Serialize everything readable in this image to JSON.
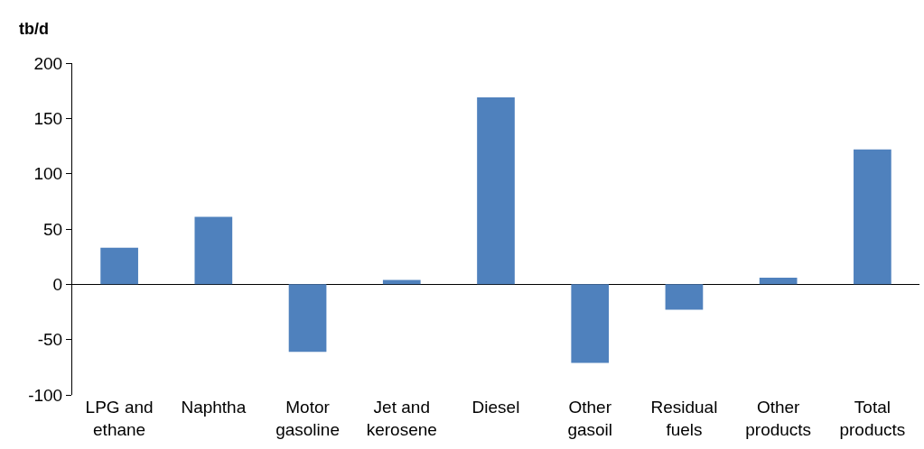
{
  "chart_data": {
    "type": "bar",
    "ylabel": "tb/d",
    "categories": [
      "LPG and\nethane",
      "Naphtha",
      "Motor\ngasoline",
      "Jet and\nkerosene",
      "Diesel",
      "Other\ngasoil",
      "Residual\nfuels",
      "Other\nproducts",
      "Total\nproducts"
    ],
    "values": [
      33,
      61,
      -61,
      4,
      169,
      -71,
      -23,
      6,
      122
    ],
    "color": "#4f81bd",
    "ylim": [
      -100,
      200
    ],
    "yticks": [
      -100,
      -50,
      0,
      50,
      100,
      150,
      200
    ],
    "legend": false
  }
}
